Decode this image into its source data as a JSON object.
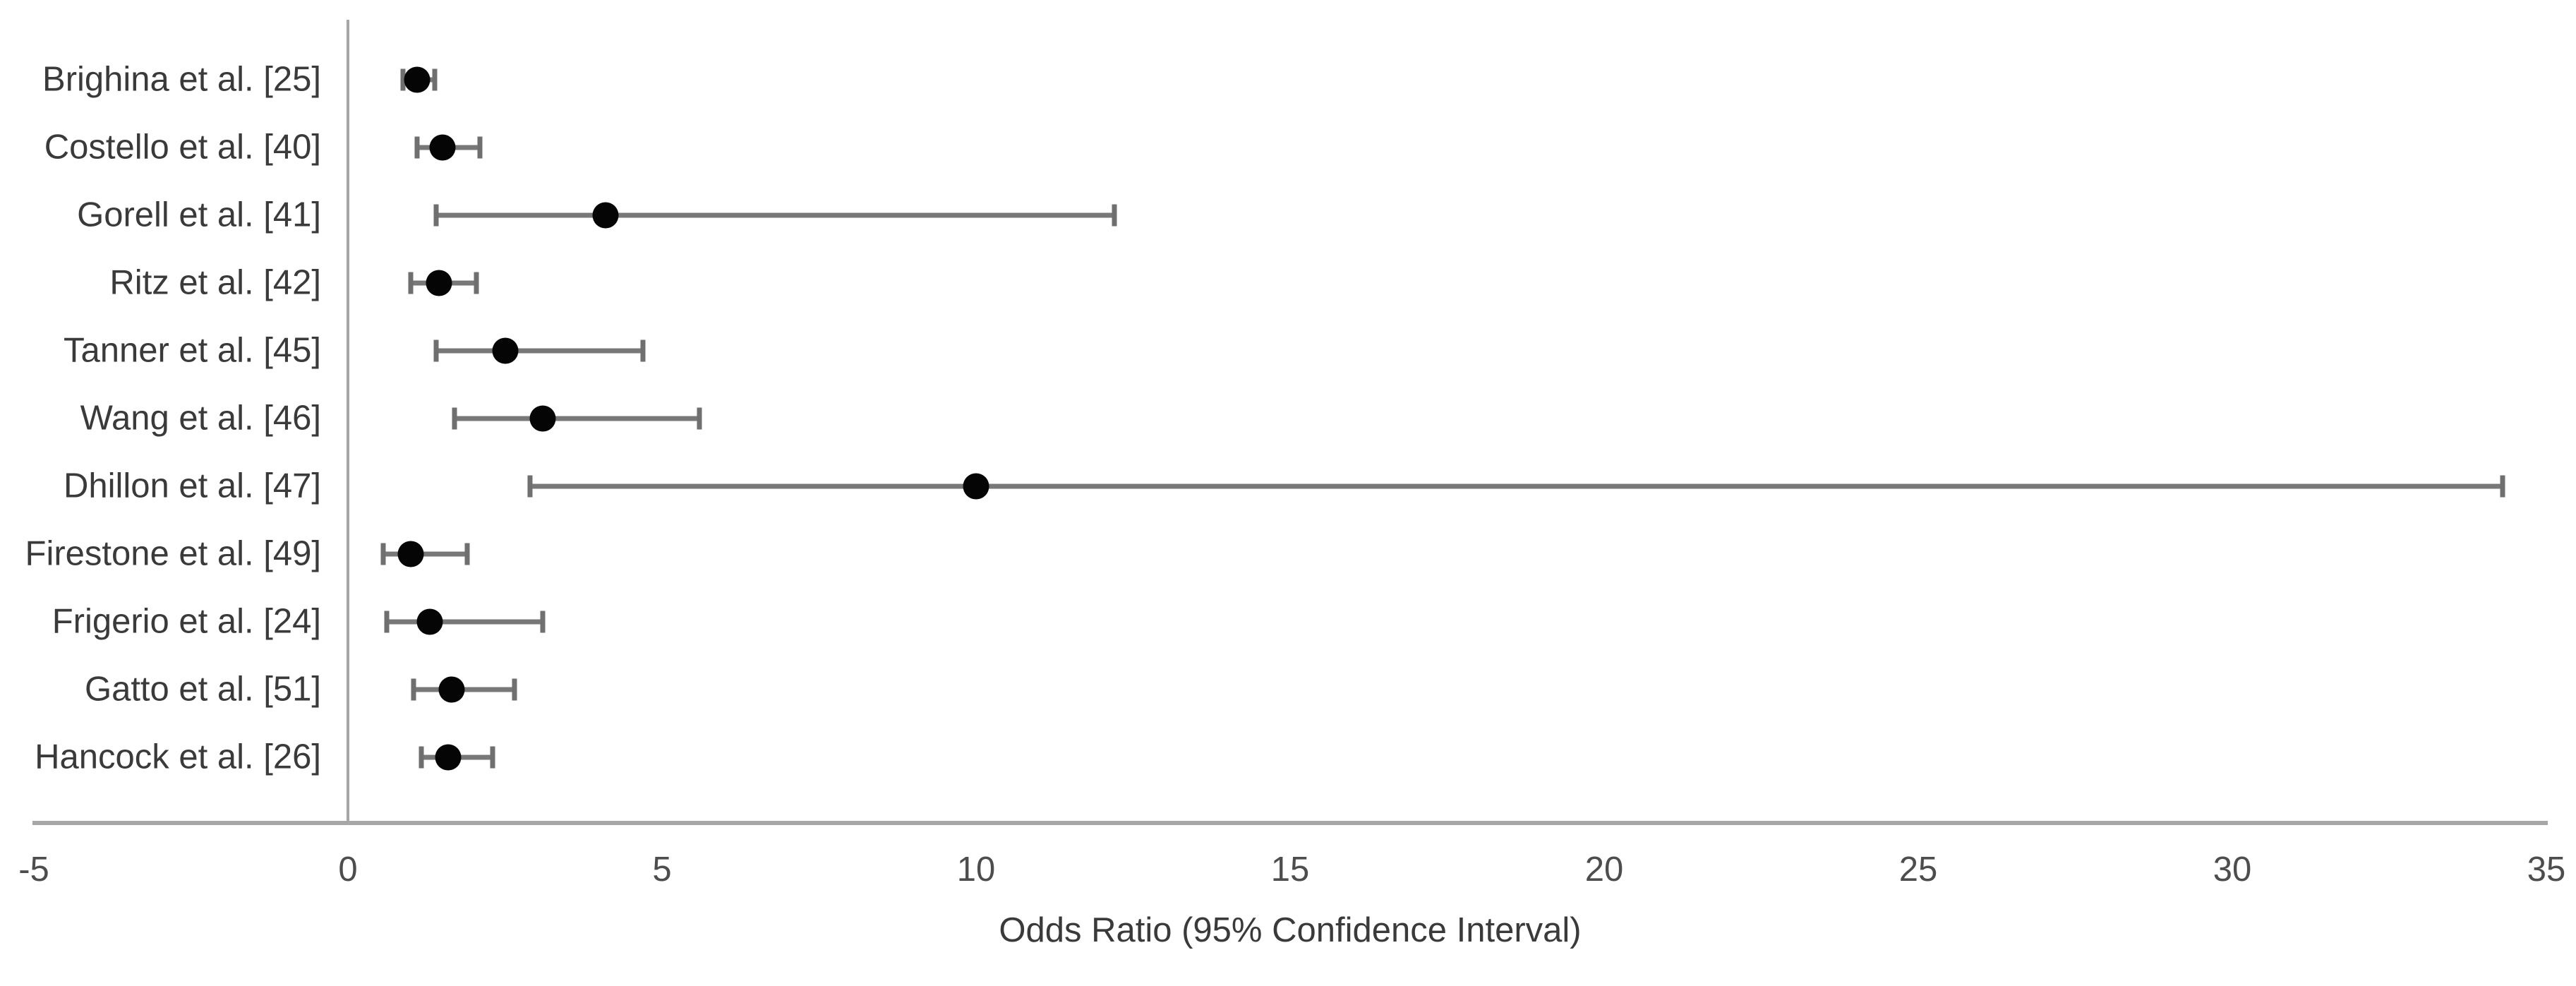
{
  "chart_data": {
    "type": "scatter",
    "variant": "forest-plot",
    "title": "",
    "xlabel": "Odds Ratio (95% Confidence Interval)",
    "ylabel": "",
    "xlim": [
      -5,
      35
    ],
    "x_ticks": [
      -5,
      0,
      5,
      10,
      15,
      20,
      25,
      30,
      35
    ],
    "grid": false,
    "legend": "none",
    "marker_shape": "filled-circle",
    "error_bar_caps": true,
    "studies": [
      {
        "label": "Brighina et al. [25]",
        "or": 1.1,
        "ci_low": 0.88,
        "ci_high": 1.38
      },
      {
        "label": "Costello et al. [40]",
        "or": 1.5,
        "ci_low": 1.1,
        "ci_high": 2.1
      },
      {
        "label": "Gorell et al. [41]",
        "or": 4.1,
        "ci_low": 1.4,
        "ci_high": 12.2
      },
      {
        "label": "Ritz et al. [42]",
        "or": 1.45,
        "ci_low": 1.0,
        "ci_high": 2.05
      },
      {
        "label": "Tanner et al. [45]",
        "or": 2.5,
        "ci_low": 1.4,
        "ci_high": 4.7
      },
      {
        "label": "Wang et al. [46]",
        "or": 3.1,
        "ci_low": 1.7,
        "ci_high": 5.6
      },
      {
        "label": "Dhillon et al. [47]",
        "or": 10.0,
        "ci_low": 2.9,
        "ci_high": 34.3
      },
      {
        "label": "Firestone et al. [49]",
        "or": 1.0,
        "ci_low": 0.56,
        "ci_high": 1.9
      },
      {
        "label": "Frigerio et al. [24]",
        "or": 1.3,
        "ci_low": 0.62,
        "ci_high": 3.1
      },
      {
        "label": "Gatto et al. [51]",
        "or": 1.65,
        "ci_low": 1.05,
        "ci_high": 2.65
      },
      {
        "label": "Hancock et al. [26]",
        "or": 1.6,
        "ci_low": 1.17,
        "ci_high": 2.3
      }
    ],
    "colors": {
      "marker": "#050505",
      "ci_bar": "#787878",
      "axis_line": "#a6a6a6",
      "tick_text": "#4d4d4d",
      "label_text": "#3a3a3a",
      "background": "#ffffff"
    }
  }
}
